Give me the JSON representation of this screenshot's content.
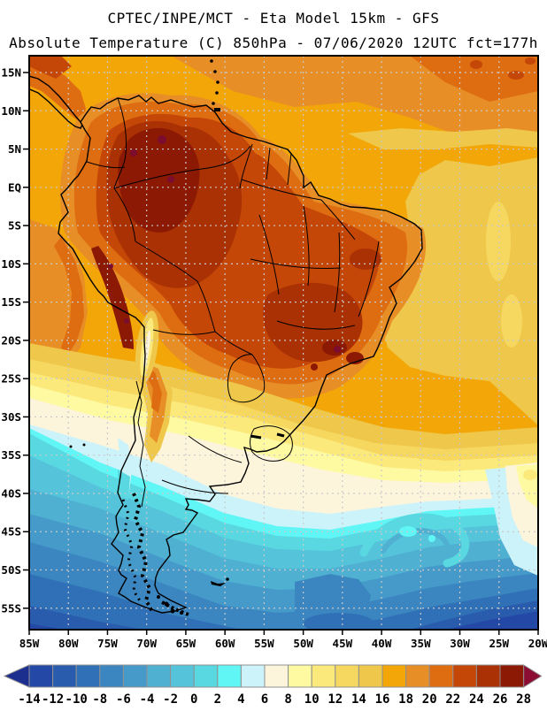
{
  "header": {
    "title_line1": "CPTEC/INPE/MCT -  Eta Model 15km - GFS",
    "title_line2": "Absolute Temperature (C) 850hPa - 07/06/2020 12UTC fct=177h"
  },
  "map": {
    "y_axis_labels": [
      "15N",
      "10N",
      "5N",
      "EQ",
      "5S",
      "10S",
      "15S",
      "20S",
      "25S",
      "30S",
      "35S",
      "40S",
      "45S",
      "50S",
      "55S"
    ],
    "x_axis_labels": [
      "85W",
      "80W",
      "75W",
      "70W",
      "65W",
      "60W",
      "55W",
      "50W",
      "45W",
      "40W",
      "35W",
      "30W",
      "25W",
      "20W"
    ]
  },
  "colorbar": {
    "tick_labels": [
      "-14",
      "-12",
      "-10",
      "-8",
      "-6",
      "-4",
      "-2",
      "0",
      "2",
      "4",
      "6",
      "8",
      "10",
      "12",
      "14",
      "16",
      "18",
      "20",
      "22",
      "24",
      "26",
      "28"
    ],
    "cell_colors": [
      "#2448a6",
      "#2a5cae",
      "#3070b6",
      "#3b86c0",
      "#459ac9",
      "#4fb0d2",
      "#55c3da",
      "#59d8e2",
      "#60f6f6",
      "#cdf3fa",
      "#fdf4dc",
      "#fdfaa2",
      "#fce97c",
      "#f6d75f",
      "#eec74b",
      "#f2a607",
      "#e88e26",
      "#de6c10",
      "#c54708",
      "#a93104",
      "#8b1903"
    ],
    "arrow_left_color": "#1c2f8f",
    "arrow_right_color": "#8c0c34"
  },
  "chart_data": {
    "type": "heatmap",
    "title": "CPTEC/INPE/MCT -  Eta Model 15km - GFS",
    "subtitle": "Absolute Temperature (C) 850hPa - 07/06/2020 12UTC fct=177h",
    "variable": "Absolute Temperature",
    "units": "C",
    "level": "850hPa",
    "model": "Eta Model 15km",
    "boundary_condition": "GFS",
    "institution": "CPTEC/INPE/MCT",
    "valid_date": "07/06/2020",
    "cycle": "12UTC",
    "forecast_hour": "fct=177h",
    "x_range": [
      "85W",
      "20W"
    ],
    "y_range": [
      "15N",
      "55S"
    ],
    "contour_interval_c": 2,
    "scale_min_c": -14,
    "scale_max_c": 28,
    "features": [
      "warm core 24-28C over Colombia, Venezuela and western Amazon",
      "22-26C across central Brazil with 26-28C patch over southeast Brazil",
      "16-20C tropical Atlantic and Caribbean",
      "6-14C band over Paraguay / northern and central Argentina",
      "cold air -6 to 6C south of 32S with cyclonic swirl near 52S 45W",
      "warm tongue 8-14C along eastern edge near 20-25W between 32S and 42S"
    ]
  }
}
